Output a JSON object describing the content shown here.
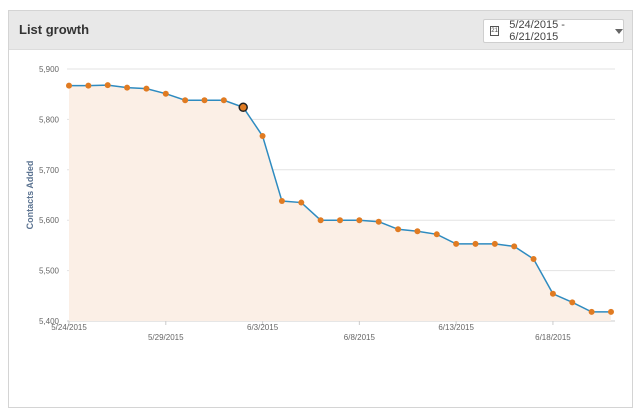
{
  "header": {
    "title": "List growth",
    "date_range": "5/24/2015 - 6/21/2015",
    "calendar_icon_text": "21"
  },
  "colors": {
    "line": "#2e8bc0",
    "point": "#e07b22",
    "fill": "#fbefe6",
    "grid": "#e3e3e3"
  },
  "chart_data": {
    "type": "area",
    "title": "List growth",
    "xlabel": "",
    "ylabel": "Contacts Added",
    "ylim": [
      5400,
      5900
    ],
    "yticks": [
      5400,
      5500,
      5600,
      5700,
      5800,
      5900
    ],
    "ytick_labels": [
      "5,400",
      "5,500",
      "5,600",
      "5,700",
      "5,800",
      "5,900"
    ],
    "xtick_labels": [
      "5/24/2015",
      "5/29/2015",
      "6/3/2015",
      "6/8/2015",
      "6/13/2015",
      "6/18/2015"
    ],
    "xtick_indices": [
      0,
      5,
      10,
      15,
      20,
      25
    ],
    "x": [
      "5/24/2015",
      "5/25/2015",
      "5/26/2015",
      "5/27/2015",
      "5/28/2015",
      "5/29/2015",
      "5/30/2015",
      "5/31/2015",
      "6/1/2015",
      "6/2/2015",
      "6/3/2015",
      "6/4/2015",
      "6/5/2015",
      "6/6/2015",
      "6/7/2015",
      "6/8/2015",
      "6/9/2015",
      "6/10/2015",
      "6/11/2015",
      "6/12/2015",
      "6/13/2015",
      "6/14/2015",
      "6/15/2015",
      "6/16/2015",
      "6/17/2015",
      "6/18/2015",
      "6/19/2015",
      "6/20/2015",
      "6/21/2015"
    ],
    "values": [
      5867,
      5867,
      5868,
      5863,
      5861,
      5851,
      5838,
      5838,
      5838,
      5824,
      5767,
      5638,
      5635,
      5600,
      5600,
      5600,
      5597,
      5582,
      5578,
      5572,
      5553,
      5553,
      5553,
      5548,
      5523,
      5454,
      5437,
      5418,
      5418
    ],
    "highlighted_index": 9,
    "grid": true,
    "legend": "none"
  }
}
